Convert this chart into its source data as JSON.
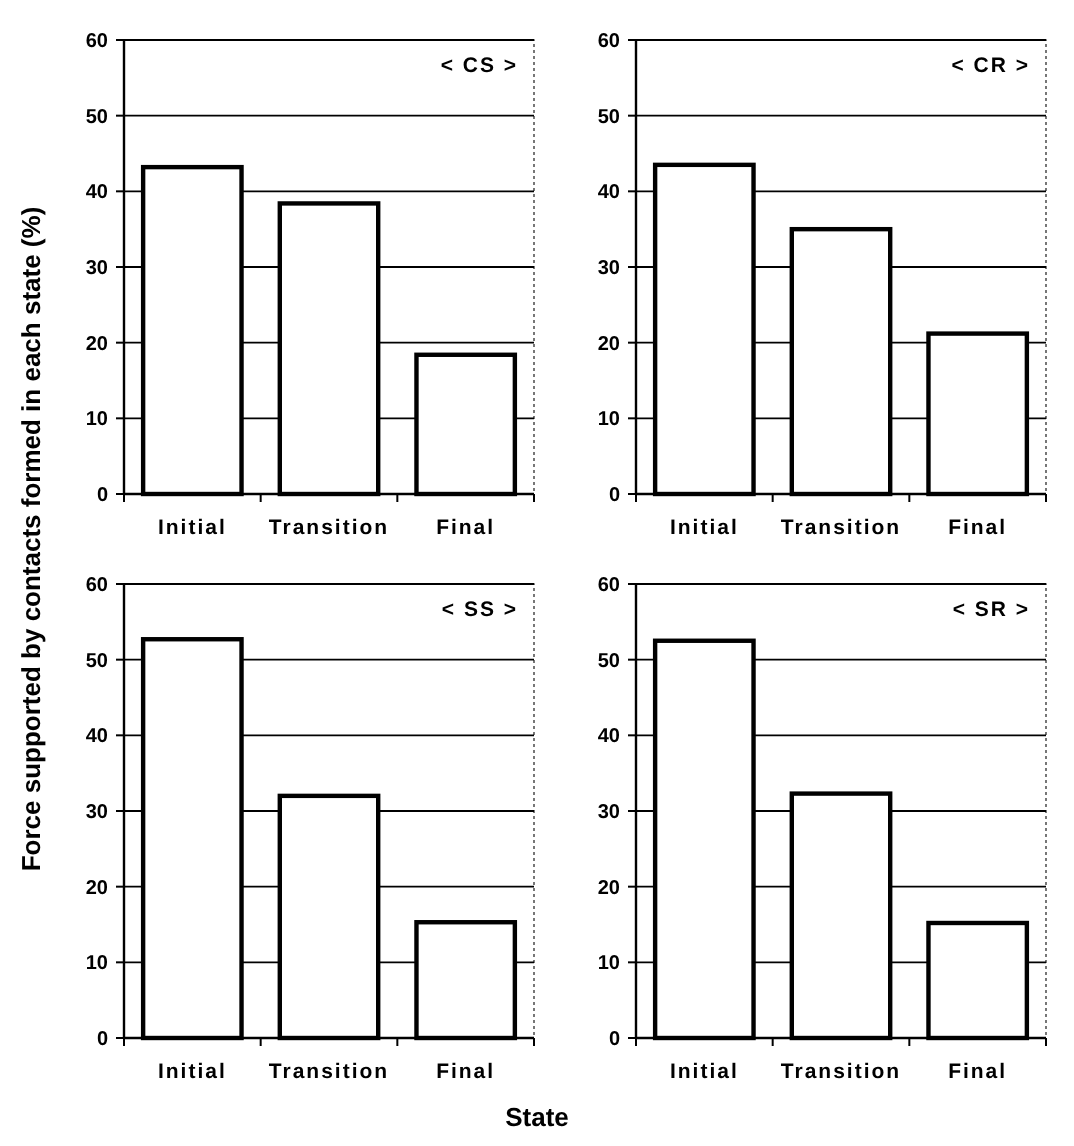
{
  "chart_data": [
    {
      "type": "bar",
      "title": "< CS >",
      "ylabel": "Force supported by contacts formed in each state (%)",
      "categories": [
        "Initial",
        "Transition",
        "Final"
      ],
      "values": [
        43.2,
        38.4,
        18.4
      ],
      "color": "#ffffff",
      "ylim": [
        0,
        60
      ],
      "yticks": [
        0,
        10,
        20,
        30,
        40,
        50,
        60
      ],
      "grid": "y"
    },
    {
      "type": "bar",
      "title": "< CR >",
      "categories": [
        "Initial",
        "Transition",
        "Final"
      ],
      "values": [
        43.5,
        35,
        21.2
      ],
      "color": "#ffffff",
      "ylim": [
        0,
        60
      ],
      "yticks": [
        0,
        10,
        20,
        30,
        40,
        50,
        60
      ],
      "grid": "y"
    },
    {
      "type": "bar",
      "title": "< SS >",
      "xlabel": "State",
      "categories": [
        "Initial",
        "Transition",
        "Final"
      ],
      "values": [
        52.7,
        32,
        15.3
      ],
      "color": "#ffffff",
      "ylim": [
        0,
        60
      ],
      "yticks": [
        0,
        10,
        20,
        30,
        40,
        50,
        60
      ],
      "grid": "y"
    },
    {
      "type": "bar",
      "title": "< SR >",
      "categories": [
        "Initial",
        "Transition",
        "Final"
      ],
      "values": [
        52.5,
        32.3,
        15.2
      ],
      "color": "#ffffff",
      "ylim": [
        0,
        60
      ],
      "yticks": [
        0,
        10,
        20,
        30,
        40,
        50,
        60
      ],
      "grid": "y"
    }
  ]
}
